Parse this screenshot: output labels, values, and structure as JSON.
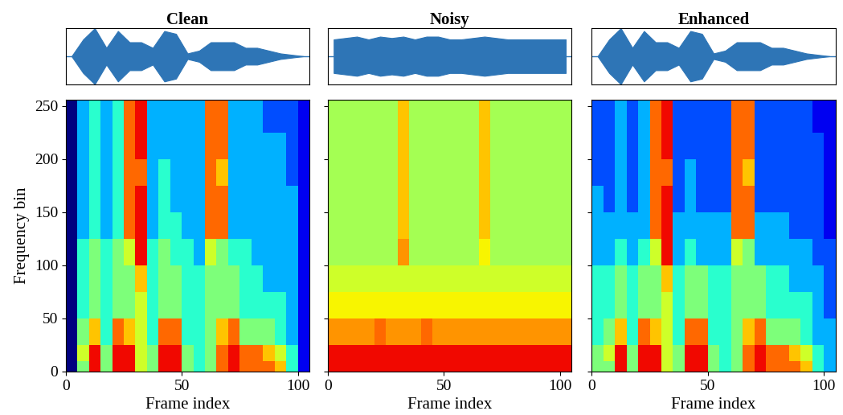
{
  "chart_data": [
    {
      "type": "heatmap",
      "title": "Clean",
      "xlabel": "Frame index",
      "ylabel": "Frequency bin",
      "xlim": [
        0,
        105
      ],
      "xticks": [
        0,
        50,
        100
      ],
      "ylim": [
        0,
        256
      ],
      "yticks": [
        0,
        50,
        100,
        150,
        200,
        250
      ],
      "color": "jet",
      "color_range": [
        0,
        10
      ],
      "x_edges": [
        0,
        5,
        10,
        15,
        20,
        25,
        30,
        35,
        40,
        45,
        50,
        55,
        60,
        65,
        70,
        75,
        80,
        85,
        90,
        95,
        100,
        105
      ],
      "y_edges": [
        0,
        10,
        25,
        50,
        75,
        100,
        125,
        150,
        175,
        200,
        225,
        256
      ],
      "cells": [
        [
          0,
          5,
          9,
          5,
          9,
          9,
          6,
          5,
          9,
          9,
          5,
          4,
          5,
          8,
          9,
          8,
          8,
          8,
          7,
          4,
          1
        ],
        [
          0,
          6,
          9,
          5,
          9,
          9,
          6,
          5,
          9,
          9,
          5,
          4,
          5,
          8,
          9,
          8,
          8,
          7,
          6,
          4,
          1
        ],
        [
          0,
          5,
          7,
          4,
          8,
          7,
          6,
          4,
          8,
          8,
          4,
          4,
          5,
          7,
          8,
          5,
          5,
          5,
          4,
          3,
          1
        ],
        [
          0,
          4,
          5,
          4,
          5,
          5,
          6,
          4,
          5,
          5,
          4,
          4,
          5,
          5,
          5,
          4,
          4,
          4,
          4,
          3,
          1
        ],
        [
          0,
          4,
          5,
          4,
          5,
          5,
          7,
          4,
          5,
          5,
          4,
          4,
          5,
          5,
          5,
          4,
          4,
          3,
          3,
          3,
          1
        ],
        [
          0,
          4,
          5,
          4,
          5,
          6,
          9,
          4,
          5,
          4,
          4,
          3,
          6,
          5,
          4,
          4,
          3,
          3,
          3,
          3,
          1
        ],
        [
          0,
          3,
          4,
          3,
          4,
          8,
          9,
          3,
          4,
          4,
          3,
          3,
          8,
          8,
          3,
          3,
          3,
          3,
          3,
          3,
          1
        ],
        [
          0,
          3,
          4,
          3,
          4,
          8,
          9,
          3,
          4,
          3,
          3,
          3,
          8,
          8,
          3,
          3,
          3,
          3,
          3,
          3,
          1
        ],
        [
          0,
          3,
          4,
          3,
          4,
          8,
          8,
          3,
          4,
          3,
          3,
          3,
          8,
          7,
          3,
          3,
          3,
          3,
          3,
          2,
          1
        ],
        [
          0,
          3,
          4,
          3,
          4,
          8,
          9,
          3,
          3,
          3,
          3,
          3,
          8,
          8,
          3,
          3,
          3,
          3,
          3,
          2,
          1
        ],
        [
          0,
          3,
          4,
          3,
          4,
          8,
          9,
          3,
          3,
          3,
          3,
          3,
          8,
          8,
          3,
          3,
          3,
          2,
          2,
          2,
          1
        ]
      ],
      "waveform": {
        "color": "#2e75b6",
        "tick_labels": false,
        "ylim": [
          -1,
          1
        ],
        "values": [
          0,
          0.6,
          1.0,
          0.3,
          0.9,
          0.5,
          0.5,
          0.3,
          0.9,
          0.8,
          0.1,
          0.2,
          0.5,
          0.5,
          0.5,
          0.3,
          0.3,
          0.2,
          0.1,
          0.05,
          0
        ]
      }
    },
    {
      "type": "heatmap",
      "title": "Noisy",
      "xlabel": "Frame index",
      "xlim": [
        0,
        105
      ],
      "xticks": [
        0,
        50,
        100
      ],
      "ylim": [
        0,
        256
      ],
      "yticks": [
        0,
        50,
        100,
        150,
        200,
        250
      ],
      "color": "jet",
      "color_range": [
        0,
        10
      ],
      "x_edges": [
        0,
        5,
        10,
        15,
        20,
        25,
        30,
        35,
        40,
        45,
        50,
        55,
        60,
        65,
        70,
        75,
        80,
        85,
        90,
        95,
        100,
        105
      ],
      "y_edges": [
        0,
        10,
        25,
        50,
        75,
        100,
        125,
        150,
        175,
        200,
        225,
        256
      ],
      "cells": [
        [
          9,
          9,
          9,
          9,
          9,
          9,
          9,
          9,
          9,
          9,
          9,
          9,
          9,
          9,
          9,
          9,
          9,
          9,
          9,
          9,
          9
        ],
        [
          9,
          9,
          9,
          9,
          9,
          9,
          9,
          9,
          9,
          9,
          9,
          9,
          9,
          9,
          9,
          9,
          9,
          9,
          9,
          9,
          9
        ],
        [
          7.5,
          7.5,
          7.5,
          7.5,
          8,
          7.5,
          7.5,
          7.5,
          8,
          7.5,
          7.5,
          7.5,
          7.5,
          7.5,
          7.5,
          7.5,
          7.5,
          7.5,
          7.5,
          7.5,
          7.5
        ],
        [
          6.5,
          6.5,
          6.5,
          6.5,
          6.5,
          6.5,
          6.5,
          6.5,
          6.5,
          6.5,
          6.5,
          6.5,
          6.5,
          6.5,
          6.5,
          6.5,
          6.5,
          6.5,
          6.5,
          6.5,
          6.5
        ],
        [
          6,
          6,
          6,
          6,
          6,
          6,
          6,
          6,
          6,
          6,
          6,
          6,
          6,
          6,
          6,
          6,
          6,
          6,
          6,
          6,
          6
        ],
        [
          5.5,
          5.5,
          5.5,
          5.5,
          5.5,
          5.5,
          7.5,
          5.5,
          5.5,
          5.5,
          5.5,
          5.5,
          5.5,
          6.5,
          5.5,
          5.5,
          5.5,
          5.5,
          5.5,
          5.5,
          5.5
        ],
        [
          5.5,
          5.5,
          5.5,
          5.5,
          5.5,
          5.5,
          7,
          5.5,
          5.5,
          5.5,
          5.5,
          5.5,
          5.5,
          7,
          5.5,
          5.5,
          5.5,
          5.5,
          5.5,
          5.5,
          5.5
        ],
        [
          5.5,
          5.5,
          5.5,
          5.5,
          5.5,
          5.5,
          7,
          5.5,
          5.5,
          5.5,
          5.5,
          5.5,
          5.5,
          7,
          5.5,
          5.5,
          5.5,
          5.5,
          5.5,
          5.5,
          5.5
        ],
        [
          5.5,
          5.5,
          5.5,
          5.5,
          5.5,
          5.5,
          7,
          5.5,
          5.5,
          5.5,
          5.5,
          5.5,
          5.5,
          7,
          5.5,
          5.5,
          5.5,
          5.5,
          5.5,
          5.5,
          5.5
        ],
        [
          5.5,
          5.5,
          5.5,
          5.5,
          5.5,
          5.5,
          7,
          5.5,
          5.5,
          5.5,
          5.5,
          5.5,
          5.5,
          7,
          5.5,
          5.5,
          5.5,
          5.5,
          5.5,
          5.5,
          5.5
        ],
        [
          5.5,
          5.5,
          5.5,
          5.5,
          5.5,
          5.5,
          7,
          5.5,
          5.5,
          5.5,
          5.5,
          5.5,
          5.5,
          7,
          5.5,
          5.5,
          5.5,
          5.5,
          5.5,
          5.5,
          5.5
        ]
      ],
      "waveform": {
        "color": "#2e75b6",
        "tick_labels": false,
        "ylim": [
          -1,
          1
        ],
        "values": [
          0.6,
          0.65,
          0.7,
          0.6,
          0.7,
          0.65,
          0.7,
          0.6,
          0.7,
          0.7,
          0.6,
          0.6,
          0.65,
          0.7,
          0.65,
          0.6,
          0.6,
          0.6,
          0.6,
          0.6,
          0.6
        ]
      }
    },
    {
      "type": "heatmap",
      "title": "Enhanced",
      "xlabel": "Frame index",
      "xlim": [
        0,
        105
      ],
      "xticks": [
        0,
        50,
        100
      ],
      "ylim": [
        0,
        256
      ],
      "yticks": [
        0,
        50,
        100,
        150,
        200,
        250
      ],
      "color": "jet",
      "color_range": [
        0,
        10
      ],
      "x_edges": [
        0,
        5,
        10,
        15,
        20,
        25,
        30,
        35,
        40,
        45,
        50,
        55,
        60,
        65,
        70,
        75,
        80,
        85,
        90,
        95,
        100,
        105
      ],
      "y_edges": [
        0,
        10,
        25,
        50,
        75,
        100,
        125,
        150,
        175,
        200,
        225,
        256
      ],
      "cells": [
        [
          5,
          5,
          9,
          5,
          9,
          9,
          6,
          5,
          9,
          9,
          5,
          4,
          5,
          8,
          9,
          8,
          8,
          8,
          7,
          4,
          3
        ],
        [
          5,
          6,
          9,
          5,
          9,
          9,
          6,
          5,
          9,
          9,
          5,
          4,
          5,
          8,
          9,
          8,
          8,
          7,
          6,
          4,
          3
        ],
        [
          4,
          5,
          7,
          4,
          8,
          7,
          6,
          4,
          8,
          8,
          4,
          4,
          5,
          7,
          8,
          5,
          5,
          5,
          4,
          3,
          3
        ],
        [
          4,
          4,
          5,
          4,
          5,
          5,
          6,
          4,
          5,
          5,
          4,
          4,
          5,
          5,
          5,
          4,
          4,
          4,
          4,
          3,
          2
        ],
        [
          4,
          4,
          5,
          4,
          5,
          5,
          7,
          4,
          5,
          5,
          4,
          4,
          5,
          5,
          5,
          4,
          4,
          3,
          3,
          3,
          2
        ],
        [
          3,
          3,
          4,
          3,
          4,
          6,
          9,
          3,
          4,
          3,
          3,
          3,
          6,
          5,
          3,
          3,
          3,
          3,
          3,
          2,
          2
        ],
        [
          3,
          3,
          3,
          3,
          3,
          8,
          9,
          3,
          3,
          3,
          3,
          3,
          8,
          8,
          3,
          3,
          3,
          2,
          2,
          2,
          1
        ],
        [
          3,
          2,
          3,
          2,
          3,
          8,
          9,
          2,
          3,
          2,
          2,
          2,
          8,
          8,
          2,
          2,
          2,
          2,
          2,
          2,
          1
        ],
        [
          2,
          2,
          3,
          2,
          3,
          8,
          8,
          2,
          3,
          2,
          2,
          2,
          8,
          7,
          2,
          2,
          2,
          2,
          2,
          2,
          1
        ],
        [
          2,
          2,
          3,
          2,
          3,
          8,
          9,
          2,
          2,
          2,
          2,
          2,
          8,
          8,
          2,
          2,
          2,
          2,
          2,
          2,
          1
        ],
        [
          2,
          2,
          3,
          2,
          3,
          8,
          9,
          2,
          2,
          2,
          2,
          2,
          8,
          8,
          2,
          2,
          2,
          2,
          2,
          1,
          1
        ]
      ],
      "waveform": {
        "color": "#2e75b6",
        "tick_labels": false,
        "ylim": [
          -1,
          1
        ],
        "values": [
          0,
          0.6,
          1.0,
          0.3,
          0.9,
          0.5,
          0.5,
          0.3,
          0.9,
          0.8,
          0.1,
          0.2,
          0.5,
          0.5,
          0.5,
          0.3,
          0.3,
          0.2,
          0.1,
          0.05,
          0
        ]
      }
    }
  ]
}
